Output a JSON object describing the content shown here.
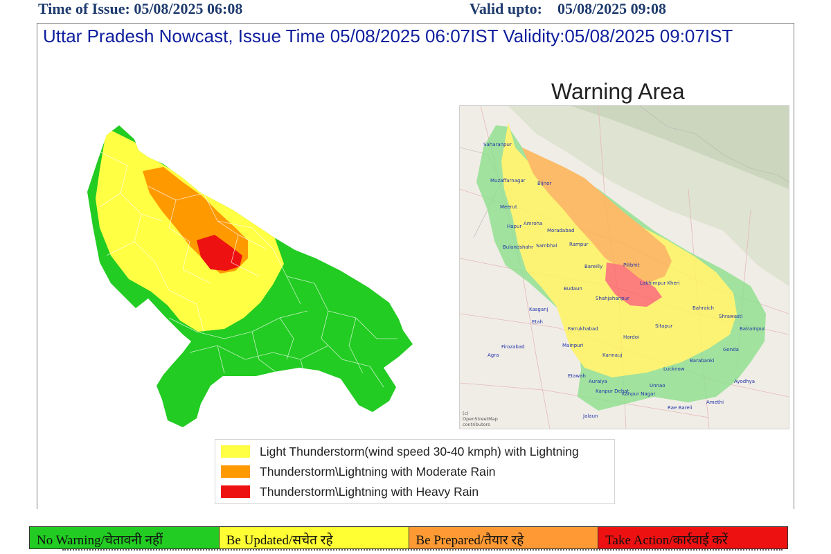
{
  "header": {
    "time_of_issue": "Time of Issue: 05/08/2025 06:08",
    "valid_upto_label": "Valid upto:",
    "valid_upto_value": "05/08/2025 09:08"
  },
  "map_title": "Uttar Pradesh Nowcast, Issue Time 05/08/2025 06:07IST  Validity:05/08/2025 09:07IST",
  "warning_area_title": "Warning Area",
  "legend": [
    {
      "label": "Light Thunderstorm(wind speed 30-40 kmph) with Lightning",
      "color": "#ffff44"
    },
    {
      "label": "Thunderstorm\\Lightning with Moderate Rain",
      "color": "#ff9900"
    },
    {
      "label": "Thunderstorm\\Lightning with Heavy Rain",
      "color": "#ee1111"
    }
  ],
  "warning_scale": [
    {
      "label": "No Warning/चेतावनी नहीं",
      "color": "#22cc22"
    },
    {
      "label": "Be Updated/सचेत रहे",
      "color": "#ffff33"
    },
    {
      "label": "Be Prepared/तैयार रहे",
      "color": "#ff9933"
    },
    {
      "label": "Take Action/कार्रवाई करें",
      "color": "#ee1111"
    }
  ],
  "colors": {
    "no_warning_green": "#22cc22",
    "yellow": "#ffff44",
    "orange": "#ff9900",
    "red": "#ee1111",
    "title_blue": "#0e1e9e"
  },
  "cities": [
    "Saharanpur",
    "Muzaffarnagar",
    "Bijnor",
    "Meerut",
    "Hapur",
    "Amroha",
    "Moradabad",
    "Rampur",
    "Bulandshahr",
    "Sambhal",
    "Bareilly",
    "Pilibhit",
    "Budaun",
    "Lakhimpur Kheri",
    "Shahjahanpur",
    "Kasganj",
    "Etah",
    "Farrukhabad",
    "Hardoi",
    "Sitapur",
    "Bahraich",
    "Shrawasti",
    "Balrampur",
    "Firozabad",
    "Mainpuri",
    "Agra",
    "Kannauj",
    "Gonda",
    "Barabanki",
    "Lucknow",
    "Etawah",
    "Auraiya",
    "Unnao",
    "Kanpur Dehat",
    "Kanpur Nagar",
    "Ayodhya",
    "Amethi",
    "Rae Bareli",
    "Jalaun"
  ],
  "attribution": [
    "(c)",
    "OpenStreetMap",
    "contributors"
  ]
}
